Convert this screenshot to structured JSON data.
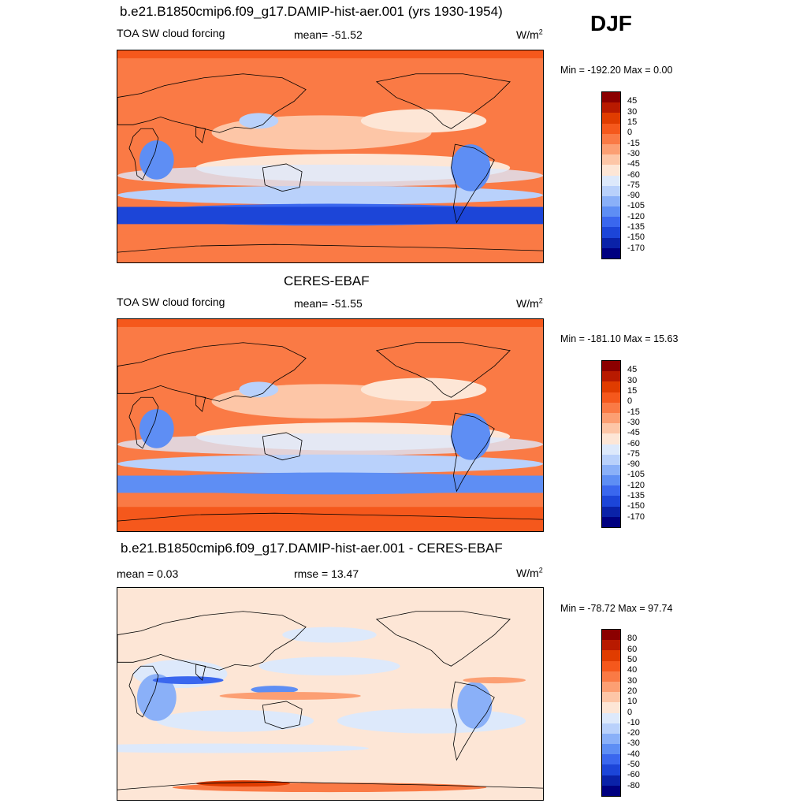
{
  "season": "DJF",
  "panels": [
    {
      "title": "b.e21.B1850cmip6.f09_g17.DAMIP-hist-aer.001 (yrs 1930-1954)",
      "left_label": "TOA SW cloud forcing",
      "center_label": "mean= -51.52",
      "units": "W/m",
      "units_sup": "2",
      "minmax": "Min = -192.20 Max =   0.00",
      "map_kind": "model"
    },
    {
      "title": "CERES-EBAF",
      "left_label": "TOA SW cloud forcing",
      "center_label": "mean= -51.55",
      "units": "W/m",
      "units_sup": "2",
      "minmax": "Min = -181.10 Max =  15.63",
      "map_kind": "obs"
    },
    {
      "title": "b.e21.B1850cmip6.f09_g17.DAMIP-hist-aer.001 - CERES-EBAF",
      "left_label": "mean =   0.03",
      "center_label": "rmse =  13.47",
      "units": "W/m",
      "units_sup": "2",
      "minmax": "Min = -78.72 Max =  97.74",
      "map_kind": "diff"
    }
  ],
  "colorbars": {
    "field": {
      "labels": [
        "45",
        "30",
        "15",
        "0",
        "-15",
        "-30",
        "-45",
        "-60",
        "-75",
        "-90",
        "-105",
        "-120",
        "-135",
        "-150",
        "-170"
      ],
      "colors": [
        "#8b0000",
        "#b81a00",
        "#e03c00",
        "#f5581c",
        "#fa7a45",
        "#fc9f73",
        "#fdc6a7",
        "#fde6d6",
        "#dde9fb",
        "#b9d1fb",
        "#8ab0f8",
        "#5e8ef4",
        "#3a67ee",
        "#1c45d8",
        "#0a22a8",
        "#000080"
      ]
    },
    "diff": {
      "labels": [
        "80",
        "60",
        "50",
        "40",
        "30",
        "20",
        "10",
        "0",
        "-10",
        "-20",
        "-30",
        "-40",
        "-50",
        "-60",
        "-80"
      ],
      "colors": [
        "#8b0000",
        "#b81a00",
        "#e03c00",
        "#f5581c",
        "#fa7a45",
        "#fc9f73",
        "#fdc6a7",
        "#fde6d6",
        "#dde9fb",
        "#b9d1fb",
        "#8ab0f8",
        "#5e8ef4",
        "#3a67ee",
        "#1c45d8",
        "#0a22a8",
        "#000080"
      ]
    }
  }
}
